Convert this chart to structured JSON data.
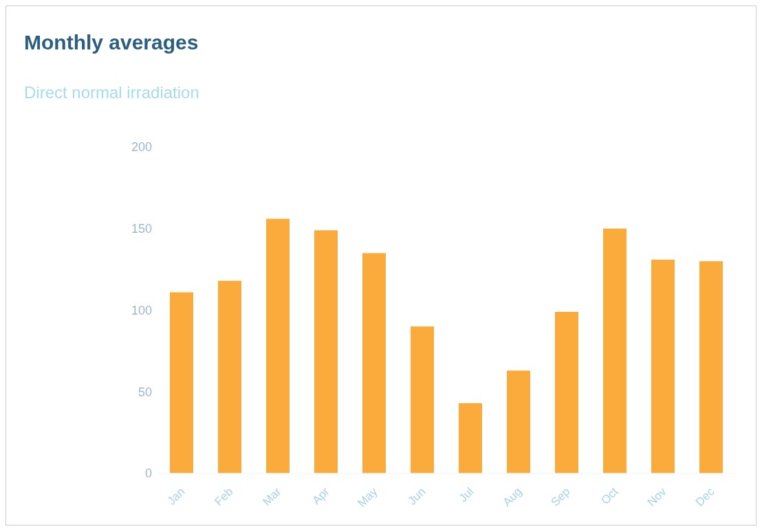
{
  "chart_data": {
    "type": "bar",
    "title": "Monthly averages",
    "subtitle": "Direct normal irradiation",
    "categories": [
      "Jan",
      "Feb",
      "Mar",
      "Apr",
      "May",
      "Jun",
      "Jul",
      "Aug",
      "Sep",
      "Oct",
      "Nov",
      "Dec"
    ],
    "values": [
      111,
      118,
      156,
      149,
      135,
      90,
      43,
      63,
      99,
      150,
      131,
      130
    ],
    "color": "#fbab3b",
    "ylim": [
      0,
      200
    ],
    "yticks": [
      0,
      50,
      100,
      150,
      200
    ],
    "grid": false
  }
}
